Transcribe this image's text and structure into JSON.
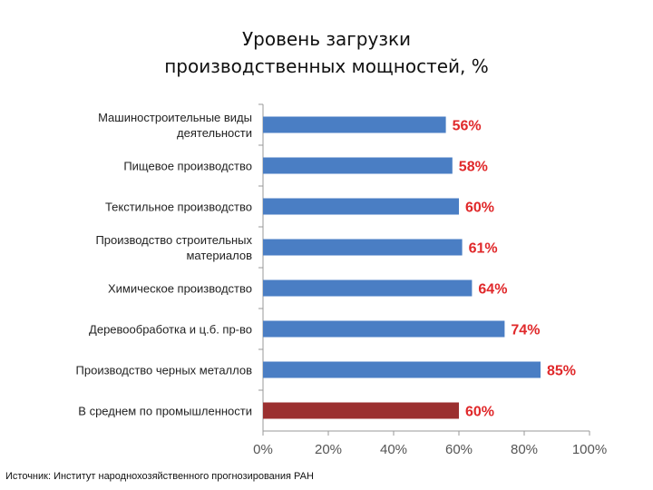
{
  "chart_data": {
    "type": "bar",
    "orientation": "horizontal",
    "title_lines": [
      "Уровень загрузки",
      "производственных мощностей, %"
    ],
    "categories": [
      [
        "Машиностроительные виды",
        "деятельности"
      ],
      [
        "Пищевое производство"
      ],
      [
        "Текстильное производство"
      ],
      [
        "Производство строительных",
        "материалов"
      ],
      [
        "Химическое производство"
      ],
      [
        "Деревообработка и ц.б. пр-во"
      ],
      [
        "Производство черных металлов"
      ],
      [
        "В среднем по промышленности"
      ]
    ],
    "values": [
      56,
      58,
      60,
      61,
      64,
      74,
      85,
      60
    ],
    "value_labels": [
      "56%",
      "58%",
      "60%",
      "61%",
      "64%",
      "74%",
      "85%",
      "60%"
    ],
    "xlim": [
      0,
      100
    ],
    "x_ticks": [
      0,
      20,
      40,
      60,
      80,
      100
    ],
    "x_tick_labels": [
      "0%",
      "20%",
      "40%",
      "60%",
      "80%",
      "100%"
    ],
    "bar_colors": [
      "#4a7ec4",
      "#4a7ec4",
      "#4a7ec4",
      "#4a7ec4",
      "#4a7ec4",
      "#4a7ec4",
      "#4a7ec4",
      "#9b3030"
    ],
    "value_label_color": "#e0282a",
    "grid": false,
    "legend": "none"
  },
  "source": "Источник: Институт народнохозяйственного прогнозирования РАН"
}
